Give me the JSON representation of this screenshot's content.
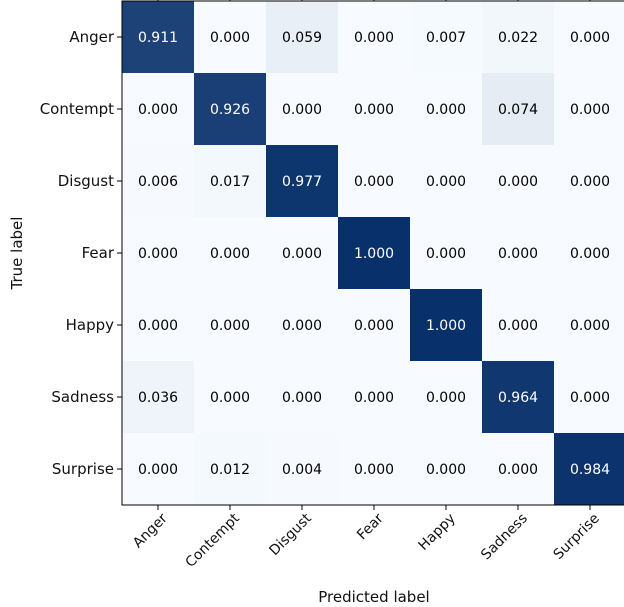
{
  "chart_data": {
    "type": "heatmap",
    "title": "",
    "xlabel": "Predicted label",
    "ylabel": "True label",
    "row_labels": [
      "Anger",
      "Contempt",
      "Disgust",
      "Fear",
      "Happy",
      "Sadness",
      "Surprise"
    ],
    "col_labels": [
      "Anger",
      "Contempt",
      "Disgust",
      "Fear",
      "Happy",
      "Sadness",
      "Surprise"
    ],
    "values": [
      [
        0.911,
        0.0,
        0.059,
        0.0,
        0.007,
        0.022,
        0.0
      ],
      [
        0.0,
        0.926,
        0.0,
        0.0,
        0.0,
        0.074,
        0.0
      ],
      [
        0.006,
        0.017,
        0.977,
        0.0,
        0.0,
        0.0,
        0.0
      ],
      [
        0.0,
        0.0,
        0.0,
        1.0,
        0.0,
        0.0,
        0.0
      ],
      [
        0.0,
        0.0,
        0.0,
        0.0,
        1.0,
        0.0,
        0.0
      ],
      [
        0.036,
        0.0,
        0.0,
        0.0,
        0.0,
        0.964,
        0.0
      ],
      [
        0.0,
        0.012,
        0.004,
        0.0,
        0.0,
        0.0,
        0.984
      ]
    ],
    "value_format": "3 decimals",
    "value_range": [
      0,
      1
    ],
    "colormap": {
      "low": "#f7fbff",
      "high": "#08306b"
    },
    "grid": false,
    "legend": "none"
  }
}
